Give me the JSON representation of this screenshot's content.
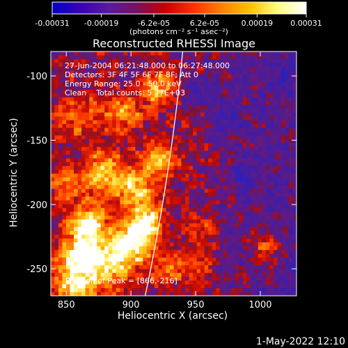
{
  "chart_data": {
    "type": "heatmap",
    "title": "Reconstructed RHESSI Image",
    "xlabel": "Heliocentric X (arcsec)",
    "ylabel": "Heliocentric Y (arcsec)",
    "xlim": [
      838,
      1028
    ],
    "ylim": [
      -271,
      -81
    ],
    "x_ticks": [
      850,
      900,
      950,
      1000
    ],
    "y_ticks": [
      -100,
      -150,
      -200,
      -250
    ],
    "colorbar": {
      "range": [
        -0.00031,
        0.00031
      ],
      "tick_values": [
        -0.00031,
        -0.00019,
        -6.2e-05,
        6.2e-05,
        0.00019,
        0.00031
      ],
      "tick_labels": [
        "-0.00031",
        "-0.00019",
        "-6.2e-05",
        "6.2e-05",
        "0.00019",
        "0.00031"
      ],
      "unit_label": "(photons cm⁻² s⁻¹ asec⁻²)",
      "colors": [
        "#0000c8",
        "#3a00b4",
        "#5a1aa0",
        "#7a1060",
        "#c80000",
        "#ff3000",
        "#ff8000",
        "#ffc000",
        "#ffff80",
        "#ffffff"
      ]
    },
    "annotations": [
      "27-Jun-2004 06:21:48.000 to 06:27:48.000",
      "Detectors: 3F 4F 5F 6F 7F 8F; Att 0",
      "Energy Range: 25.0 - 50.0 keV",
      "Clean    Total counts: 5.77E+03"
    ],
    "peak_label": "Position of Peak = [866,-216]",
    "peak_position": [
      866,
      -216
    ],
    "limb_arc": [
      [
        911,
        -271
      ],
      [
        940,
        -81
      ]
    ],
    "emission_sources": [
      [
        866,
        -216,
        1.0,
        10
      ],
      [
        912,
        -215,
        0.85,
        9
      ],
      [
        900,
        -230,
        0.85,
        12
      ],
      [
        880,
        -247,
        0.8,
        14
      ],
      [
        855,
        -262,
        0.75,
        11
      ],
      [
        860,
        -240,
        0.7,
        10
      ],
      [
        880,
        -176,
        0.8,
        12
      ],
      [
        905,
        -190,
        0.7,
        10
      ],
      [
        920,
        -165,
        0.65,
        10
      ],
      [
        920,
        -110,
        0.6,
        9
      ],
      [
        895,
        -130,
        0.55,
        10
      ],
      [
        860,
        -130,
        0.45,
        12
      ],
      [
        850,
        -185,
        0.4,
        10
      ],
      [
        930,
        -250,
        0.5,
        9
      ],
      [
        1005,
        -235,
        0.5,
        8
      ],
      [
        955,
        -220,
        0.35,
        8
      ],
      [
        955,
        -250,
        0.4,
        9
      ]
    ],
    "negative_sources": [
      [
        975,
        -135,
        0.3,
        10
      ],
      [
        990,
        -175,
        0.35,
        8
      ],
      [
        955,
        -110,
        0.3,
        8
      ],
      [
        1015,
        -100,
        0.2,
        8
      ]
    ]
  },
  "timestamp": "1-May-2022 12:10"
}
